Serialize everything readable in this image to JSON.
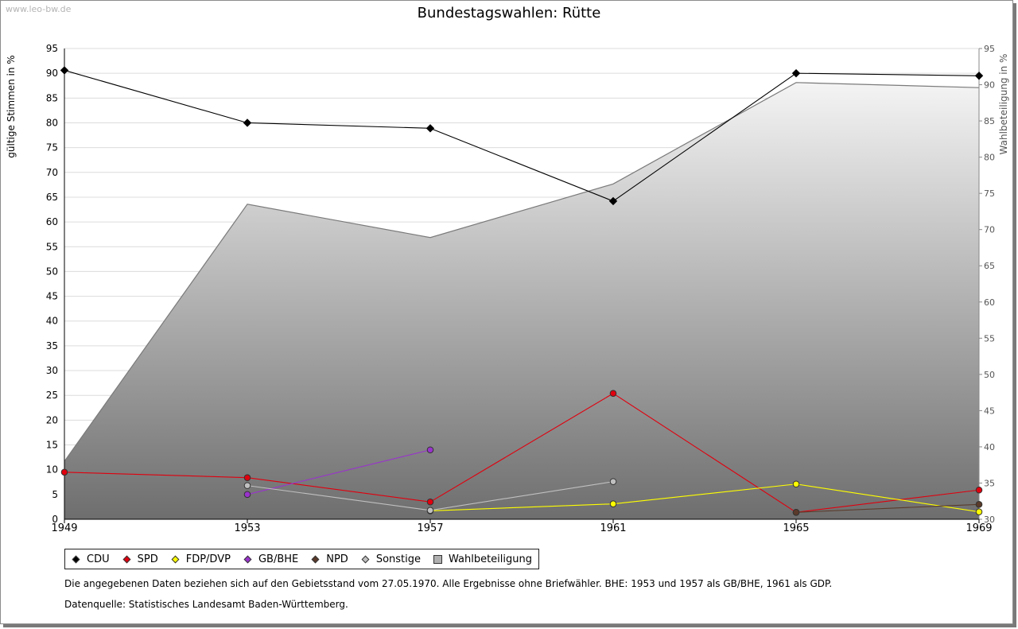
{
  "watermark": "www.leo-bw.de",
  "legend": [
    {
      "label": "CDU",
      "color": "#000000",
      "shape": "diamond"
    },
    {
      "label": "SPD",
      "color": "#e0000e",
      "shape": "diamond"
    },
    {
      "label": "FDP/DVP",
      "color": "#ffff00",
      "shape": "diamond"
    },
    {
      "label": "GB/BHE",
      "color": "#9933cc",
      "shape": "diamond"
    },
    {
      "label": "NPD",
      "color": "#5a3a2a",
      "shape": "diamond"
    },
    {
      "label": "Sonstige",
      "color": "#c0c0c0",
      "shape": "diamond"
    },
    {
      "label": "Wahlbeteiligung",
      "color": "#b0b0b0",
      "shape": "square"
    }
  ],
  "notes": {
    "line1": "Die angegebenen Daten beziehen sich auf den Gebietsstand vom 27.05.1970. Alle Ergebnisse ohne Briefwähler. BHE: 1953 und 1957 als GB/BHE, 1961 als GDP.",
    "line2": "Datenquelle: Statistisches Landesamt Baden-Württemberg."
  },
  "chart_data": {
    "type": "line",
    "title": "Bundestagswahlen: Rütte",
    "ylabel": "gültige Stimmen in %",
    "y2label": "Wahlbeteiligung in %",
    "categories": [
      "1949",
      "1953",
      "1957",
      "1961",
      "1965",
      "1969"
    ],
    "ylim": [
      0,
      95
    ],
    "y2lim": [
      30,
      95
    ],
    "yticks": [
      0,
      5,
      10,
      15,
      20,
      25,
      30,
      35,
      40,
      45,
      50,
      55,
      60,
      65,
      70,
      75,
      80,
      85,
      90,
      95
    ],
    "y2ticks": [
      30,
      35,
      40,
      45,
      50,
      55,
      60,
      65,
      70,
      75,
      80,
      85,
      90,
      95
    ],
    "series": [
      {
        "name": "CDU",
        "color": "#000000",
        "values": [
          90.6,
          80.0,
          78.9,
          64.2,
          90.0,
          89.5
        ]
      },
      {
        "name": "SPD",
        "color": "#e0000e",
        "values": [
          9.5,
          8.4,
          3.5,
          25.4,
          1.4,
          5.9
        ]
      },
      {
        "name": "FDP/DVP",
        "color": "#ffff00",
        "values": [
          null,
          null,
          1.7,
          3.1,
          7.1,
          1.5
        ]
      },
      {
        "name": "GB/BHE",
        "color": "#9933cc",
        "values": [
          null,
          5.0,
          14.0,
          null,
          null,
          null
        ]
      },
      {
        "name": "NPD",
        "color": "#5a3a2a",
        "values": [
          null,
          null,
          null,
          null,
          1.4,
          3.0
        ]
      },
      {
        "name": "Sonstige",
        "color": "#c0c0c0",
        "values": [
          null,
          6.8,
          1.8,
          7.6,
          null,
          null
        ]
      }
    ],
    "turnout": {
      "name": "Wahlbeteiligung",
      "axis": "right",
      "values": [
        38.0,
        73.5,
        68.9,
        76.3,
        90.3,
        89.6
      ]
    }
  }
}
